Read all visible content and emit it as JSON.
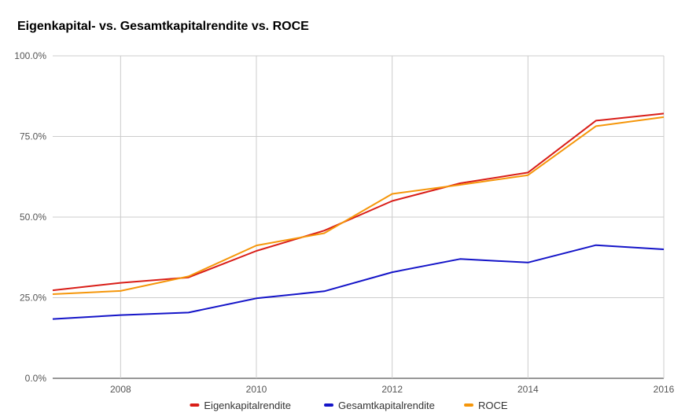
{
  "chart_data": {
    "type": "line",
    "title": "Eigenkapital- vs. Gesamtkapitalrendite vs. ROCE",
    "xlabel": "",
    "ylabel": "",
    "x": [
      2007,
      2008,
      2009,
      2010,
      2011,
      2012,
      2013,
      2014,
      2015,
      2016
    ],
    "xlim": [
      2007,
      2016
    ],
    "x_ticks": [
      2008,
      2010,
      2012,
      2014,
      2016
    ],
    "x_tick_labels": [
      "2008",
      "2010",
      "2012",
      "2014",
      "2016"
    ],
    "ylim": [
      0,
      100
    ],
    "y_ticks": [
      0,
      25,
      50,
      75,
      100
    ],
    "y_tick_labels": [
      "0.0%",
      "25.0%",
      "50.0%",
      "75.0%",
      "100.0%"
    ],
    "grid": true,
    "legend_position": "bottom",
    "series": [
      {
        "name": "Eigenkapitalrendite",
        "color": "#d91e18",
        "values": [
          27.3,
          29.6,
          31.3,
          39.5,
          45.8,
          55.0,
          60.5,
          63.8,
          79.9,
          82.1
        ]
      },
      {
        "name": "Gesamtkapitalrendite",
        "color": "#1414c8",
        "values": [
          18.4,
          19.6,
          20.4,
          24.8,
          27.0,
          32.9,
          37.0,
          35.9,
          41.3,
          40.0
        ]
      },
      {
        "name": "ROCE",
        "color": "#f5960a",
        "values": [
          26.1,
          27.1,
          31.6,
          41.2,
          45.0,
          57.2,
          60.0,
          63.0,
          78.2,
          81.0
        ]
      }
    ]
  }
}
